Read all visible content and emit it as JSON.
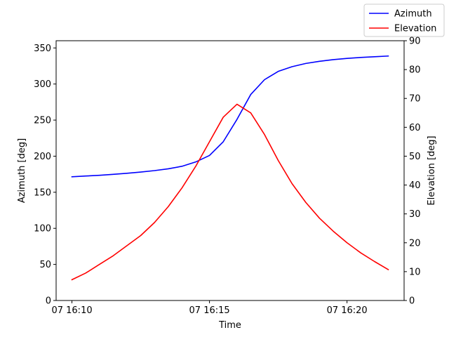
{
  "chart_data": {
    "type": "line",
    "title": "",
    "xlabel": "Time",
    "ylabel_left": "Azimuth [deg]",
    "ylabel_right": "Elevation [deg]",
    "x_tick_labels": [
      "07 16:10",
      "07 16:15",
      "07 16:20"
    ],
    "x_tick_minutes": [
      0,
      5,
      10
    ],
    "x_lim_minutes": [
      -0.575,
      12.075
    ],
    "ylim_left": [
      0,
      360
    ],
    "ylim_right": [
      0,
      90
    ],
    "yticks_left": [
      0,
      50,
      100,
      150,
      200,
      250,
      300,
      350
    ],
    "yticks_right": [
      0,
      10,
      20,
      30,
      40,
      50,
      60,
      70,
      80,
      90
    ],
    "x_minutes": [
      0,
      0.5,
      1,
      1.5,
      2,
      2.5,
      3,
      3.5,
      4,
      4.5,
      5,
      5.5,
      6,
      6.5,
      7,
      7.5,
      8,
      8.5,
      9,
      9.5,
      10,
      10.5,
      11,
      11.5
    ],
    "series": [
      {
        "name": "Azimuth",
        "axis": "left",
        "color": "#0000ff",
        "values": [
          171.5,
          172.5,
          173.5,
          174.8,
          176.3,
          178.0,
          180.0,
          182.5,
          186.0,
          192.0,
          201.0,
          220.0,
          251.0,
          285.5,
          306.0,
          317.5,
          324.0,
          328.5,
          331.5,
          333.8,
          335.5,
          336.8,
          337.8,
          338.8
        ]
      },
      {
        "name": "Elevation",
        "axis": "right",
        "color": "#ff0000",
        "values": [
          7.2,
          9.5,
          12.5,
          15.5,
          19.0,
          22.5,
          27.0,
          32.5,
          39.0,
          46.5,
          55.0,
          63.5,
          68.0,
          65.0,
          57.5,
          48.5,
          40.5,
          34.0,
          28.5,
          24.0,
          20.0,
          16.5,
          13.5,
          10.7
        ]
      }
    ],
    "grid": false,
    "legend_position": "top-right"
  }
}
